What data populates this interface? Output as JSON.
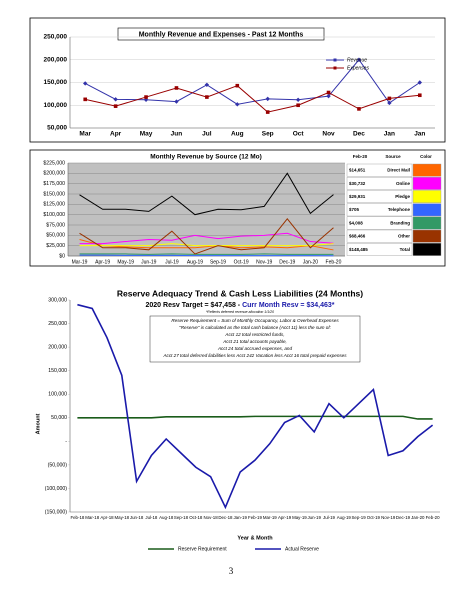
{
  "chart_data": [
    {
      "type": "line",
      "title": "Monthly Revenue and Expenses - Past 12 Months",
      "categories": [
        "Mar",
        "Apr",
        "May",
        "Jun",
        "Jul",
        "Aug",
        "Sep",
        "Oct",
        "Nov",
        "Dec",
        "Jan",
        "Jan"
      ],
      "series": [
        {
          "name": "Revenue",
          "color": "#3333aa",
          "marker": "diamond",
          "values": [
            148000,
            113000,
            112000,
            108000,
            145000,
            102000,
            114000,
            112000,
            120000,
            200000,
            105000,
            150000
          ]
        },
        {
          "name": "Expenses",
          "color": "#990000",
          "marker": "square",
          "values": [
            113000,
            98000,
            118000,
            138000,
            118000,
            143000,
            85000,
            100000,
            128000,
            92000,
            115000,
            122000
          ]
        }
      ],
      "ylim": [
        50000,
        250000
      ],
      "yticks": [
        {
          "value": 50000,
          "label": "50,000"
        },
        {
          "value": 100000,
          "label": "100,000"
        },
        {
          "value": 150000,
          "label": "150,000"
        },
        {
          "value": 200000,
          "label": "200,000"
        },
        {
          "value": 250000,
          "label": "250,000"
        }
      ],
      "grid": true
    },
    {
      "type": "line",
      "title": "Monthly Revenue by Source (12 Mo)",
      "categories": [
        "Mar-19",
        "Apr-19",
        "May-19",
        "Jun-19",
        "Jul-19",
        "Aug-19",
        "Sep-19",
        "Oct-19",
        "Nov-19",
        "Dec-19",
        "Jan-20",
        "Feb-20"
      ],
      "series": [
        {
          "name": "Direct Mail",
          "color": "#ff6600",
          "values": [
            40000,
            25000,
            22000,
            20000,
            20000,
            20000,
            25000,
            20000,
            22000,
            20000,
            25000,
            14651
          ]
        },
        {
          "name": "Online",
          "color": "#ff00ff",
          "values": [
            30000,
            30000,
            35000,
            40000,
            38000,
            50000,
            42000,
            48000,
            50000,
            55000,
            35000,
            30732
          ]
        },
        {
          "name": "Pledge",
          "color": "#ffff00",
          "values": [
            25000,
            25000,
            25000,
            25000,
            30000,
            25000,
            25000,
            25000,
            25000,
            25000,
            25000,
            29931
          ]
        },
        {
          "name": "Telephone",
          "color": "#3366ff",
          "values": [
            2000,
            2000,
            1500,
            1500,
            1500,
            1000,
            1000,
            1000,
            1000,
            1000,
            1000,
            705
          ]
        },
        {
          "name": "Branding",
          "color": "#339966",
          "values": [
            5000,
            5000,
            5000,
            4000,
            5000,
            4000,
            4000,
            4000,
            5000,
            4000,
            4000,
            4008
          ]
        },
        {
          "name": "Other",
          "color": "#993300",
          "values": [
            55000,
            20000,
            20000,
            15000,
            60000,
            5000,
            25000,
            15000,
            20000,
            90000,
            20000,
            68466
          ]
        },
        {
          "name": "Total",
          "color": "#000000",
          "values": [
            148000,
            113000,
            113000,
            108000,
            145000,
            100000,
            113000,
            112000,
            120000,
            200000,
            103000,
            148485
          ]
        }
      ],
      "ylim": [
        0,
        225000
      ],
      "yticks": [
        {
          "value": 0,
          "label": "$0"
        },
        {
          "value": 25000,
          "label": "$25,000"
        },
        {
          "value": 50000,
          "label": "$50,000"
        },
        {
          "value": 75000,
          "label": "$75,000"
        },
        {
          "value": 100000,
          "label": "$100,000"
        },
        {
          "value": 125000,
          "label": "$125,000"
        },
        {
          "value": 150000,
          "label": "$150,000"
        },
        {
          "value": 175000,
          "label": "$175,000"
        },
        {
          "value": 200000,
          "label": "$200,000"
        },
        {
          "value": 225000,
          "label": "$225,000"
        }
      ],
      "grid": true,
      "table": {
        "columns": [
          "Feb-20",
          "Source",
          "Color"
        ],
        "values": [
          "$14,651",
          "$30,732",
          "$29,931",
          "$705",
          "$4,008",
          "$68,466",
          "$148,485"
        ]
      }
    },
    {
      "type": "line",
      "title": "Reserve Adequacy Trend & Cash Less Liabilities (24 Months)",
      "subtitle": [
        "2020 Resv Target = $47,458 -",
        "Curr Month Resv = $34,463*"
      ],
      "note": "*Reflects deferred revenue allocation 1/1/20",
      "annotation": [
        "Reserve Requirement = Sum of Monthly Occupancy, Labor & Overhead Expenses",
        "\"Reserve\" is calculated as the total cash balance (Acct 11) less the sum of:",
        "Acct 12 total restricted funds,",
        "Acct 21 total accounts payable,",
        "Acct 24 total accrued expenses, and",
        "Acct 27 total deferred liabilities less Acct 242 Vacation less Acct 16 total prepaid expenses"
      ],
      "y_label": "Amount",
      "x_label": "Year & Month",
      "categories": [
        "Feb-18",
        "Mar-18",
        "Apr-18",
        "May-18",
        "Jun-18",
        "Jul-18",
        "Aug-18",
        "Sep-18",
        "Oct-18",
        "Nov-18",
        "Dec-18",
        "Jan-19",
        "Feb-19",
        "Mar-19",
        "Apr-19",
        "May-19",
        "Jun-19",
        "Jul-19",
        "Aug-19",
        "Sep-19",
        "Oct-19",
        "Nov-19",
        "Dec-19",
        "Jan-20",
        "Feb-20"
      ],
      "series": [
        {
          "name": "Reserve Requirement",
          "color": "#1a5c1a",
          "values": [
            50000,
            50000,
            50000,
            50000,
            50000,
            50000,
            52000,
            52000,
            52000,
            52000,
            52000,
            52000,
            53000,
            53000,
            53000,
            53000,
            53000,
            53000,
            53000,
            53000,
            53000,
            53000,
            53000,
            47458,
            47458
          ]
        },
        {
          "name": "Actual Reserve",
          "color": "#1a1aaa",
          "values": [
            290000,
            282000,
            220000,
            140000,
            -85000,
            -30000,
            5000,
            -25000,
            -55000,
            -75000,
            -140000,
            -65000,
            -40000,
            -5000,
            40000,
            55000,
            20000,
            80000,
            50000,
            80000,
            110000,
            -30000,
            -20000,
            10000,
            34463
          ]
        }
      ],
      "ylim": [
        -150000,
        300000
      ],
      "yticks": [
        {
          "value": -150000,
          "label": "(150,000)"
        },
        {
          "value": -100000,
          "label": "(100,000)"
        },
        {
          "value": -50000,
          "label": "(50,000)"
        },
        {
          "value": 0,
          "label": "-"
        },
        {
          "value": 50000,
          "label": "50,000"
        },
        {
          "value": 100000,
          "label": "100,000"
        },
        {
          "value": 150000,
          "label": "150,000"
        },
        {
          "value": 200000,
          "label": "200,000"
        },
        {
          "value": 250000,
          "label": "250,000"
        },
        {
          "value": 300000,
          "label": "300,000"
        }
      ],
      "grid": false
    }
  ],
  "page_number": "3"
}
